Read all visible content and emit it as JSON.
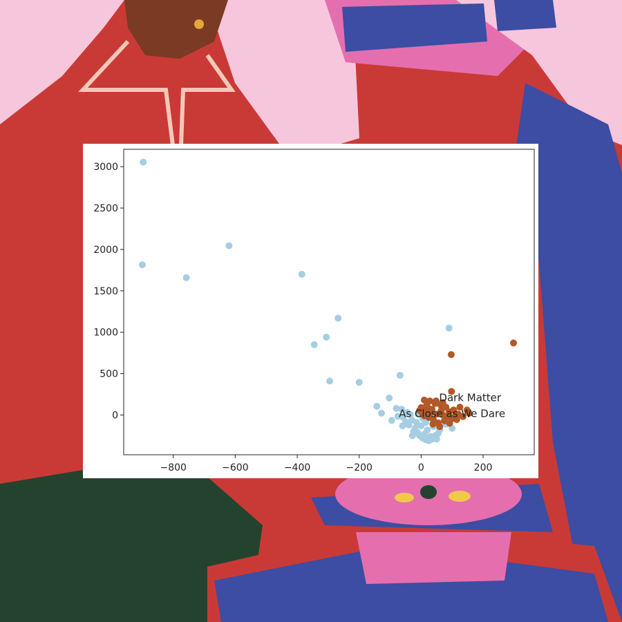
{
  "background": {
    "description_colors": {
      "pink_wall": "#f6c6dc",
      "red_figure": "#c93a36",
      "brown_face": "#7a3a24",
      "blue_block": "#3c4da3",
      "dark_green": "#24432f",
      "hot_pink": "#e56fae"
    }
  },
  "chart_data": {
    "type": "scatter",
    "title": "",
    "xlabel": "",
    "ylabel": "",
    "xlim": [
      -960,
      365
    ],
    "ylim": [
      -480,
      3210
    ],
    "xticks": [
      -800,
      -600,
      -400,
      -200,
      0,
      200
    ],
    "yticks": [
      0,
      500,
      1000,
      1500,
      2000,
      2500,
      3000
    ],
    "xtick_labels": [
      "−800",
      "−600",
      "−400",
      "−200",
      "0",
      "200"
    ],
    "ytick_labels": [
      "0",
      "500",
      "1000",
      "1500",
      "2000",
      "2500",
      "3000"
    ],
    "grid": false,
    "legend": "none",
    "series": [
      {
        "color": "#a6cee3",
        "points": [
          [
            -897,
            3055
          ],
          [
            -900,
            1815
          ],
          [
            -758,
            1660
          ],
          [
            -620,
            2045
          ],
          [
            -385,
            1700
          ],
          [
            -268,
            1170
          ],
          [
            -306,
            940
          ],
          [
            -345,
            850
          ],
          [
            -295,
            410
          ],
          [
            -200,
            395
          ],
          [
            -68,
            480
          ],
          [
            90,
            1050
          ],
          [
            -143,
            105
          ],
          [
            -128,
            22
          ],
          [
            -103,
            205
          ],
          [
            -95,
            -65
          ],
          [
            -80,
            80
          ],
          [
            -63,
            70
          ],
          [
            -58,
            -30
          ],
          [
            -40,
            -120
          ],
          [
            -30,
            -60
          ],
          [
            -20,
            -160
          ],
          [
            -12,
            -210
          ],
          [
            -5,
            -250
          ],
          [
            5,
            -280
          ],
          [
            15,
            -300
          ],
          [
            25,
            -310
          ],
          [
            35,
            -290
          ],
          [
            45,
            -250
          ],
          [
            55,
            -220
          ],
          [
            -75,
            -15
          ],
          [
            -50,
            -85
          ],
          [
            -35,
            5
          ],
          [
            -25,
            -200
          ],
          [
            -15,
            -90
          ],
          [
            0,
            -130
          ],
          [
            10,
            -230
          ],
          [
            20,
            -180
          ],
          [
            30,
            -260
          ],
          [
            40,
            -140
          ],
          [
            60,
            -180
          ],
          [
            80,
            -110
          ],
          [
            100,
            -160
          ],
          [
            -45,
            30
          ],
          [
            -10,
            10
          ],
          [
            5,
            -40
          ],
          [
            15,
            -90
          ],
          [
            -60,
            -130
          ],
          [
            -28,
            -250
          ],
          [
            50,
            -290
          ]
        ]
      },
      {
        "color": "#b15928",
        "points": [
          [
            298,
            870
          ],
          [
            97,
            730
          ],
          [
            98,
            285
          ],
          [
            10,
            180
          ],
          [
            28,
            170
          ],
          [
            45,
            140
          ],
          [
            62,
            125
          ],
          [
            20,
            100
          ],
          [
            35,
            70
          ],
          [
            0,
            90
          ],
          [
            -5,
            55
          ],
          [
            15,
            40
          ],
          [
            30,
            20
          ],
          [
            50,
            10
          ],
          [
            70,
            0
          ],
          [
            85,
            -20
          ],
          [
            100,
            -45
          ],
          [
            115,
            -55
          ],
          [
            135,
            -20
          ],
          [
            148,
            60
          ],
          [
            155,
            20
          ],
          [
            120,
            10
          ],
          [
            90,
            40
          ],
          [
            75,
            -70
          ],
          [
            55,
            -95
          ],
          [
            40,
            -60
          ],
          [
            25,
            -30
          ],
          [
            10,
            -10
          ],
          [
            65,
            55
          ],
          [
            80,
            95
          ],
          [
            105,
            60
          ],
          [
            125,
            95
          ],
          [
            38,
            -110
          ],
          [
            60,
            -140
          ],
          [
            92,
            -100
          ],
          [
            18,
            120
          ],
          [
            48,
            170
          ],
          [
            70,
            150
          ],
          [
            110,
            -10
          ],
          [
            5,
            10
          ]
        ]
      }
    ],
    "annotations": [
      {
        "text": "Dark Matter",
        "x": 58,
        "y": 165
      },
      {
        "text": "As Close as We Dare",
        "x": -72,
        "y": -25
      }
    ]
  }
}
